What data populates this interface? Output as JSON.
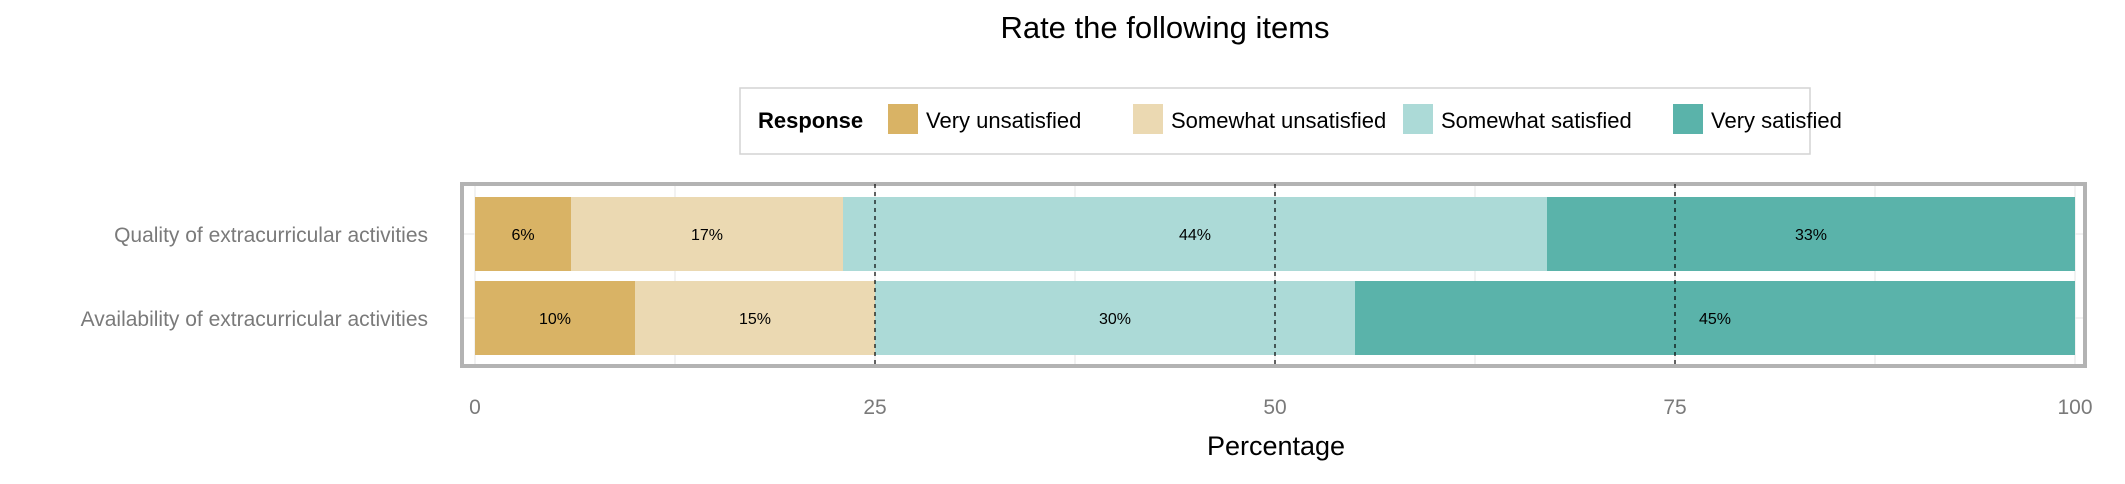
{
  "chart_data": {
    "type": "bar",
    "orientation": "horizontal",
    "stacked": true,
    "title": "Rate the following items",
    "xlabel": "Percentage",
    "ylabel": "",
    "xlim": [
      0,
      100
    ],
    "xticks": [
      0,
      25,
      50,
      75,
      100
    ],
    "grid": true,
    "reference_lines": [
      25,
      50,
      75
    ],
    "legend": {
      "title": "Response",
      "position": "top"
    },
    "categories": [
      "Quality of extracurricular activities",
      "Availability of extracurricular activities"
    ],
    "series": [
      {
        "name": "Very unsatisfied",
        "color": "#d9b365",
        "values": [
          6,
          10
        ],
        "labels": [
          "6%",
          "10%"
        ]
      },
      {
        "name": "Somewhat unsatisfied",
        "color": "#ebd9b2",
        "values": [
          17,
          15
        ],
        "labels": [
          "17%",
          "15%"
        ]
      },
      {
        "name": "Somewhat satisfied",
        "color": "#acdad7",
        "values": [
          44,
          30
        ],
        "labels": [
          "44%",
          "30%"
        ]
      },
      {
        "name": "Very satisfied",
        "color": "#5ab3aa",
        "values": [
          33,
          45
        ],
        "labels": [
          "33%",
          "45%"
        ]
      }
    ]
  }
}
